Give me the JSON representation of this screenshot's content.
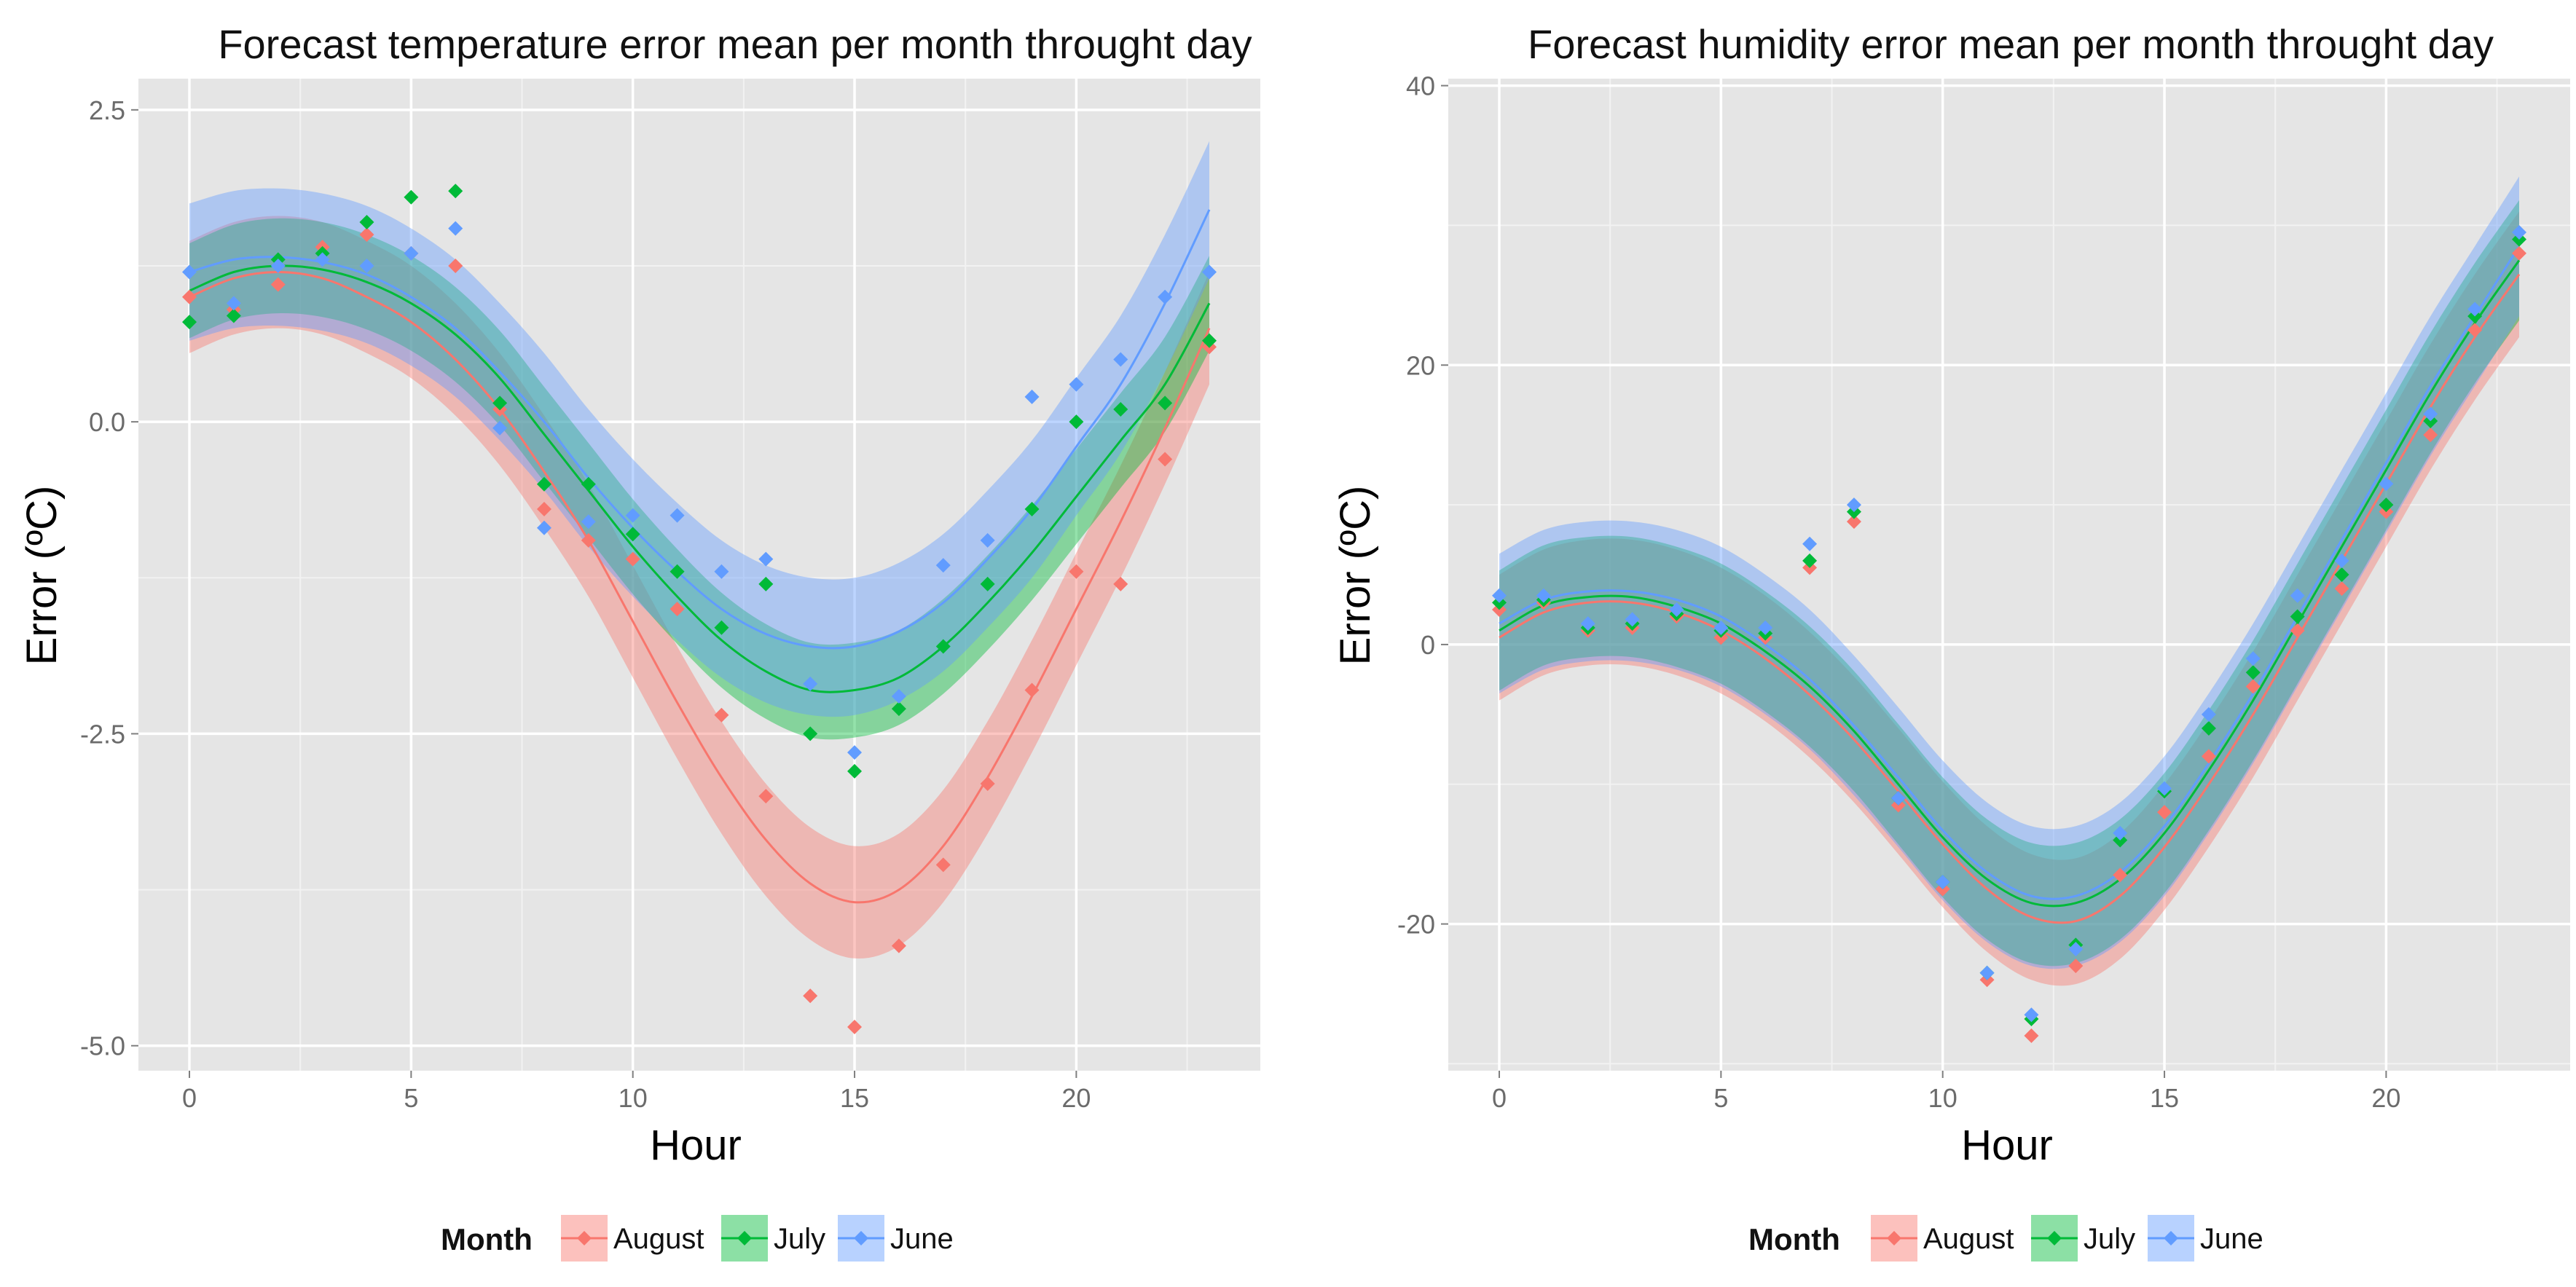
{
  "figure": {
    "caption": ""
  },
  "chart_data": [
    {
      "type": "scatter",
      "title": "Forecast temperature error mean per month throught day",
      "xlabel": "Hour",
      "ylabel": "Error (ºC)",
      "xlim": [
        -1.15,
        24.15
      ],
      "ylim": [
        -5.2,
        2.75
      ],
      "xticks": [
        0,
        5,
        10,
        15,
        20
      ],
      "xtick_labels": [
        "0",
        "5",
        "10",
        "15",
        "20"
      ],
      "yticks": [
        2.5,
        0,
        -2.5,
        -5
      ],
      "ytick_labels": [
        "2.5",
        "0.0",
        "-2.5",
        "-5.0"
      ],
      "grid": true,
      "legend_title": "Month",
      "legend_position": "bottom",
      "series": [
        {
          "name": "August",
          "color": "#F8766D",
          "x": [
            0,
            1,
            2,
            3,
            4,
            5,
            6,
            7,
            8,
            9,
            10,
            11,
            12,
            13,
            14,
            15,
            16,
            17,
            18,
            19,
            20,
            21,
            22,
            23
          ],
          "y": [
            1.0,
            0.9,
            1.1,
            1.4,
            1.5,
            1.35,
            1.25,
            0.1,
            -0.7,
            -0.95,
            -1.1,
            -1.5,
            -2.35,
            -3.0,
            -4.6,
            -4.85,
            -4.2,
            -3.55,
            -2.9,
            -2.15,
            -1.2,
            -1.3,
            -0.3,
            0.6
          ],
          "fit": [
            [
              0,
              1.0
            ],
            [
              1,
              1.15
            ],
            [
              2,
              1.2
            ],
            [
              3,
              1.15
            ],
            [
              4,
              1.0
            ],
            [
              5,
              0.8
            ],
            [
              6,
              0.5
            ],
            [
              7,
              0.1
            ],
            [
              8,
              -0.4
            ],
            [
              9,
              -0.95
            ],
            [
              10,
              -1.6
            ],
            [
              11,
              -2.25
            ],
            [
              12,
              -2.85
            ],
            [
              13,
              -3.35
            ],
            [
              14,
              -3.7
            ],
            [
              15,
              -3.85
            ],
            [
              16,
              -3.75
            ],
            [
              17,
              -3.4
            ],
            [
              18,
              -2.85
            ],
            [
              19,
              -2.2
            ],
            [
              20,
              -1.5
            ],
            [
              21,
              -0.8
            ],
            [
              22,
              -0.05
            ],
            [
              23,
              0.75
            ]
          ],
          "band": 0.45
        },
        {
          "name": "July",
          "color": "#00BA38",
          "x": [
            0,
            1,
            2,
            3,
            4,
            5,
            6,
            7,
            8,
            9,
            10,
            11,
            12,
            13,
            14,
            15,
            16,
            17,
            18,
            19,
            20,
            21,
            22,
            23
          ],
          "y": [
            0.8,
            0.85,
            1.3,
            1.35,
            1.6,
            1.8,
            1.85,
            0.15,
            -0.5,
            -0.5,
            -0.9,
            -1.2,
            -1.65,
            -1.3,
            -2.5,
            -2.8,
            -2.3,
            -1.8,
            -1.3,
            -0.7,
            0.0,
            0.1,
            0.15,
            0.65
          ],
          "fit": [
            [
              0,
              1.05
            ],
            [
              1,
              1.2
            ],
            [
              2,
              1.25
            ],
            [
              3,
              1.22
            ],
            [
              4,
              1.12
            ],
            [
              5,
              0.95
            ],
            [
              6,
              0.7
            ],
            [
              7,
              0.35
            ],
            [
              8,
              -0.1
            ],
            [
              9,
              -0.55
            ],
            [
              10,
              -1.0
            ],
            [
              11,
              -1.4
            ],
            [
              12,
              -1.75
            ],
            [
              13,
              -2.0
            ],
            [
              14,
              -2.15
            ],
            [
              15,
              -2.15
            ],
            [
              16,
              -2.05
            ],
            [
              17,
              -1.8
            ],
            [
              18,
              -1.45
            ],
            [
              19,
              -1.05
            ],
            [
              20,
              -0.6
            ],
            [
              21,
              -0.15
            ],
            [
              22,
              0.3
            ],
            [
              23,
              0.95
            ]
          ],
          "band": 0.38
        },
        {
          "name": "June",
          "color": "#619CFF",
          "x": [
            0,
            1,
            2,
            3,
            4,
            5,
            6,
            7,
            8,
            9,
            10,
            11,
            12,
            13,
            14,
            15,
            16,
            17,
            18,
            19,
            20,
            21,
            22,
            23
          ],
          "y": [
            1.2,
            0.95,
            1.25,
            1.3,
            1.25,
            1.35,
            1.55,
            -0.05,
            -0.85,
            -0.8,
            -0.75,
            -0.75,
            -1.2,
            -1.1,
            -2.1,
            -2.65,
            -2.2,
            -1.15,
            -0.95,
            0.2,
            0.3,
            0.5,
            1.0,
            1.2
          ],
          "fit": [
            [
              0,
              1.2
            ],
            [
              1,
              1.3
            ],
            [
              2,
              1.32
            ],
            [
              3,
              1.28
            ],
            [
              4,
              1.18
            ],
            [
              5,
              1.0
            ],
            [
              6,
              0.75
            ],
            [
              7,
              0.4
            ],
            [
              8,
              0.0
            ],
            [
              9,
              -0.45
            ],
            [
              10,
              -0.85
            ],
            [
              11,
              -1.2
            ],
            [
              12,
              -1.5
            ],
            [
              13,
              -1.7
            ],
            [
              14,
              -1.8
            ],
            [
              15,
              -1.8
            ],
            [
              16,
              -1.68
            ],
            [
              17,
              -1.45
            ],
            [
              18,
              -1.1
            ],
            [
              19,
              -0.7
            ],
            [
              20,
              -0.2
            ],
            [
              21,
              0.3
            ],
            [
              22,
              0.95
            ],
            [
              23,
              1.7
            ]
          ],
          "band": 0.55
        }
      ]
    },
    {
      "type": "scatter",
      "title": "Forecast humidity error mean per month throught day",
      "xlabel": "Hour",
      "ylabel": "Error (ºC)",
      "xlim": [
        -1.15,
        24.15
      ],
      "ylim": [
        -30.5,
        40.5
      ],
      "xticks": [
        0,
        5,
        10,
        15,
        20
      ],
      "xtick_labels": [
        "0",
        "5",
        "10",
        "15",
        "20"
      ],
      "yticks": [
        40,
        20,
        0,
        -20
      ],
      "ytick_labels": [
        "40",
        "20",
        "0",
        "-20"
      ],
      "grid": true,
      "legend_title": "Month",
      "legend_position": "bottom",
      "series": [
        {
          "name": "August",
          "color": "#F8766D",
          "x": [
            0,
            1,
            2,
            3,
            4,
            5,
            6,
            7,
            8,
            9,
            10,
            11,
            12,
            13,
            14,
            15,
            16,
            17,
            18,
            19,
            20,
            21,
            22,
            23
          ],
          "y": [
            2.5,
            3.0,
            1.0,
            1.2,
            2.0,
            0.5,
            0.5,
            5.5,
            8.8,
            -11.5,
            -17.5,
            -24.0,
            -28.0,
            -23.0,
            -16.5,
            -12.0,
            -8.0,
            -3.0,
            1.0,
            4.0,
            9.5,
            15.0,
            22.5,
            28.0
          ],
          "fit": [
            [
              0,
              0.5
            ],
            [
              1,
              2.3
            ],
            [
              2,
              3.0
            ],
            [
              3,
              3.0
            ],
            [
              4,
              2.3
            ],
            [
              5,
              1.0
            ],
            [
              6,
              -1.0
            ],
            [
              7,
              -3.6
            ],
            [
              8,
              -6.8
            ],
            [
              9,
              -10.5
            ],
            [
              10,
              -14.3
            ],
            [
              11,
              -17.5
            ],
            [
              12,
              -19.5
            ],
            [
              13,
              -19.8
            ],
            [
              14,
              -18.0
            ],
            [
              15,
              -14.5
            ],
            [
              16,
              -10.0
            ],
            [
              17,
              -5.0
            ],
            [
              18,
              0.5
            ],
            [
              19,
              6.0
            ],
            [
              20,
              11.5
            ],
            [
              21,
              17.0
            ],
            [
              22,
              22.0
            ],
            [
              23,
              26.5
            ]
          ],
          "band": 4.5
        },
        {
          "name": "July",
          "color": "#00BA38",
          "x": [
            0,
            1,
            2,
            3,
            4,
            5,
            6,
            7,
            8,
            9,
            10,
            11,
            12,
            13,
            14,
            15,
            16,
            17,
            18,
            19,
            20,
            21,
            22,
            23
          ],
          "y": [
            3.0,
            3.2,
            1.2,
            1.5,
            2.2,
            1.0,
            0.8,
            6.0,
            9.5,
            -11.0,
            -17.0,
            -23.5,
            -26.8,
            -21.5,
            -14.0,
            -10.5,
            -6.0,
            -2.0,
            2.0,
            5.0,
            10.0,
            16.0,
            23.5,
            29.0
          ],
          "fit": [
            [
              0,
              1.0
            ],
            [
              1,
              2.8
            ],
            [
              2,
              3.4
            ],
            [
              3,
              3.4
            ],
            [
              4,
              2.7
            ],
            [
              5,
              1.5
            ],
            [
              6,
              -0.5
            ],
            [
              7,
              -3.0
            ],
            [
              8,
              -6.2
            ],
            [
              9,
              -10.0
            ],
            [
              10,
              -13.8
            ],
            [
              11,
              -16.8
            ],
            [
              12,
              -18.5
            ],
            [
              13,
              -18.5
            ],
            [
              14,
              -16.8
            ],
            [
              15,
              -13.5
            ],
            [
              16,
              -9.0
            ],
            [
              17,
              -4.0
            ],
            [
              18,
              1.5
            ],
            [
              19,
              7.0
            ],
            [
              20,
              12.5
            ],
            [
              21,
              18.0
            ],
            [
              22,
              23.0
            ],
            [
              23,
              27.5
            ]
          ],
          "band": 4.3
        },
        {
          "name": "June",
          "color": "#619CFF",
          "x": [
            0,
            1,
            2,
            3,
            4,
            5,
            6,
            7,
            8,
            9,
            10,
            11,
            12,
            13,
            14,
            15,
            16,
            17,
            18,
            19,
            20,
            21,
            22,
            23
          ],
          "y": [
            3.5,
            3.5,
            1.5,
            1.8,
            2.5,
            1.2,
            1.2,
            7.2,
            10.0,
            -11.0,
            -17.0,
            -23.5,
            -26.5,
            -21.8,
            -13.5,
            -10.3,
            -5.0,
            -1.0,
            3.5,
            6.0,
            11.5,
            16.5,
            24.0,
            29.5
          ],
          "fit": [
            [
              0,
              1.5
            ],
            [
              1,
              3.2
            ],
            [
              2,
              3.8
            ],
            [
              3,
              3.8
            ],
            [
              4,
              3.2
            ],
            [
              5,
              2.0
            ],
            [
              6,
              0.0
            ],
            [
              7,
              -2.5
            ],
            [
              8,
              -5.8
            ],
            [
              9,
              -9.5
            ],
            [
              10,
              -13.3
            ],
            [
              11,
              -16.3
            ],
            [
              12,
              -18.0
            ],
            [
              13,
              -18.0
            ],
            [
              14,
              -16.3
            ],
            [
              15,
              -13.0
            ],
            [
              16,
              -8.5
            ],
            [
              17,
              -3.5
            ],
            [
              18,
              2.0
            ],
            [
              19,
              7.5
            ],
            [
              20,
              13.0
            ],
            [
              21,
              18.5
            ],
            [
              22,
              23.5
            ],
            [
              23,
              28.5
            ]
          ],
          "band": 5.0
        }
      ]
    }
  ]
}
